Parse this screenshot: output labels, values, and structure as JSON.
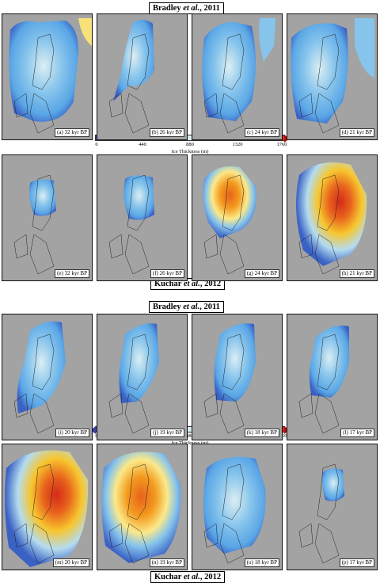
{
  "headings": [
    {
      "author": "Bradley",
      "etal": "et al.",
      "year": ", 2011"
    },
    {
      "author": "Kuchar",
      "etal": "et al.",
      "year": ", 2012"
    },
    {
      "author": "Bradley",
      "etal": "et al.",
      "year": ", 2011"
    },
    {
      "author": "Kuchar",
      "etal": "et al.",
      "year": ", 2012"
    }
  ],
  "colorbar": {
    "label": "Ice Thickness (m)",
    "ticks": [
      "0",
      "440",
      "880",
      "1320",
      "1760"
    ],
    "colors": [
      "#3a52b8",
      "#3f7fd8",
      "#5aa6e6",
      "#86c4ec",
      "#b4dcef",
      "#dceef2",
      "#fbe98a",
      "#f7c62e",
      "#f39a1e",
      "#e8621c",
      "#d42a1a"
    ]
  },
  "panels": [
    {
      "label": "(a) 32 kyr BP"
    },
    {
      "label": "(b) 26 kyr BP"
    },
    {
      "label": "(c) 24 kyr BP"
    },
    {
      "label": "(d) 21 kyr BP"
    },
    {
      "label": "(e) 32 kyr BP"
    },
    {
      "label": "(f) 26 kyr BP"
    },
    {
      "label": "(g) 24 kyr BP"
    },
    {
      "label": "(h) 21 kyr BP"
    },
    {
      "label": "(i) 20 kyr BP"
    },
    {
      "label": "(j) 19 kyr BP"
    },
    {
      "label": "(k) 18 kyr BP"
    },
    {
      "label": "(l) 17 kyr BP"
    },
    {
      "label": "(m) 20 kyr BP"
    },
    {
      "label": "(n) 19 kyr BP"
    },
    {
      "label": "(o) 18 kyr BP"
    },
    {
      "label": "(p) 17 kyr BP"
    }
  ]
}
